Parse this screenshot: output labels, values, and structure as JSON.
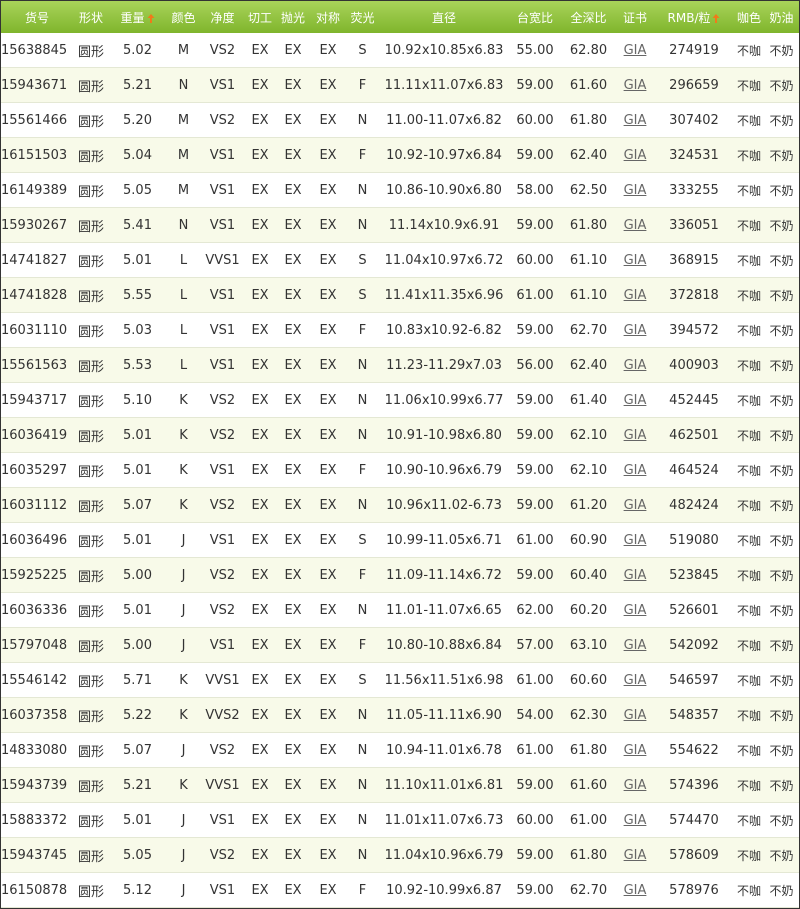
{
  "table": {
    "header": [
      "货号",
      "形状",
      "重量",
      "颜色",
      "净度",
      "切工",
      "抛光",
      "对称",
      "荧光",
      "直径",
      "台宽比",
      "全深比",
      "证书",
      "RMB/粒",
      "咖色",
      "奶油"
    ],
    "rows": [
      [
        "15638845",
        "圆形",
        "5.02",
        "M",
        "VS2",
        "EX",
        "EX",
        "EX",
        "S",
        "10.92x10.85x6.83",
        "55.00",
        "62.80",
        "GIA",
        "274919",
        "不咖",
        "不奶"
      ],
      [
        "15943671",
        "圆形",
        "5.21",
        "N",
        "VS1",
        "EX",
        "EX",
        "EX",
        "F",
        "11.11x11.07x6.83",
        "59.00",
        "61.60",
        "GIA",
        "296659",
        "不咖",
        "不奶"
      ],
      [
        "15561466",
        "圆形",
        "5.20",
        "M",
        "VS2",
        "EX",
        "EX",
        "EX",
        "N",
        "11.00-11.07x6.82",
        "60.00",
        "61.80",
        "GIA",
        "307402",
        "不咖",
        "不奶"
      ],
      [
        "16151503",
        "圆形",
        "5.04",
        "M",
        "VS1",
        "EX",
        "EX",
        "EX",
        "F",
        "10.92-10.97x6.84",
        "59.00",
        "62.40",
        "GIA",
        "324531",
        "不咖",
        "不奶"
      ],
      [
        "16149389",
        "圆形",
        "5.05",
        "M",
        "VS1",
        "EX",
        "EX",
        "EX",
        "N",
        "10.86-10.90x6.80",
        "58.00",
        "62.50",
        "GIA",
        "333255",
        "不咖",
        "不奶"
      ],
      [
        "15930267",
        "圆形",
        "5.41",
        "N",
        "VS1",
        "EX",
        "EX",
        "EX",
        "N",
        "11.14x10.9x6.91",
        "59.00",
        "61.80",
        "GIA",
        "336051",
        "不咖",
        "不奶"
      ],
      [
        "14741827",
        "圆形",
        "5.01",
        "L",
        "VVS1",
        "EX",
        "EX",
        "EX",
        "S",
        "11.04x10.97x6.72",
        "60.00",
        "61.10",
        "GIA",
        "368915",
        "不咖",
        "不奶"
      ],
      [
        "14741828",
        "圆形",
        "5.55",
        "L",
        "VS1",
        "EX",
        "EX",
        "EX",
        "S",
        "11.41x11.35x6.96",
        "61.00",
        "61.10",
        "GIA",
        "372818",
        "不咖",
        "不奶"
      ],
      [
        "16031110",
        "圆形",
        "5.03",
        "L",
        "VS1",
        "EX",
        "EX",
        "EX",
        "F",
        "10.83x10.92-6.82",
        "59.00",
        "62.70",
        "GIA",
        "394572",
        "不咖",
        "不奶"
      ],
      [
        "15561563",
        "圆形",
        "5.53",
        "L",
        "VS1",
        "EX",
        "EX",
        "EX",
        "N",
        "11.23-11.29x7.03",
        "56.00",
        "62.40",
        "GIA",
        "400903",
        "不咖",
        "不奶"
      ],
      [
        "15943717",
        "圆形",
        "5.10",
        "K",
        "VS2",
        "EX",
        "EX",
        "EX",
        "N",
        "11.06x10.99x6.77",
        "59.00",
        "61.40",
        "GIA",
        "452445",
        "不咖",
        "不奶"
      ],
      [
        "16036419",
        "圆形",
        "5.01",
        "K",
        "VS2",
        "EX",
        "EX",
        "EX",
        "N",
        "10.91-10.98x6.80",
        "59.00",
        "62.10",
        "GIA",
        "462501",
        "不咖",
        "不奶"
      ],
      [
        "16035297",
        "圆形",
        "5.01",
        "K",
        "VS1",
        "EX",
        "EX",
        "EX",
        "F",
        "10.90-10.96x6.79",
        "59.00",
        "62.10",
        "GIA",
        "464524",
        "不咖",
        "不奶"
      ],
      [
        "16031112",
        "圆形",
        "5.07",
        "K",
        "VS2",
        "EX",
        "EX",
        "EX",
        "N",
        "10.96x11.02-6.73",
        "59.00",
        "61.20",
        "GIA",
        "482424",
        "不咖",
        "不奶"
      ],
      [
        "16036496",
        "圆形",
        "5.01",
        "J",
        "VS1",
        "EX",
        "EX",
        "EX",
        "S",
        "10.99-11.05x6.71",
        "61.00",
        "60.90",
        "GIA",
        "519080",
        "不咖",
        "不奶"
      ],
      [
        "15925225",
        "圆形",
        "5.00",
        "J",
        "VS2",
        "EX",
        "EX",
        "EX",
        "F",
        "11.09-11.14x6.72",
        "59.00",
        "60.40",
        "GIA",
        "523845",
        "不咖",
        "不奶"
      ],
      [
        "16036336",
        "圆形",
        "5.01",
        "J",
        "VS2",
        "EX",
        "EX",
        "EX",
        "N",
        "11.01-11.07x6.65",
        "62.00",
        "60.20",
        "GIA",
        "526601",
        "不咖",
        "不奶"
      ],
      [
        "15797048",
        "圆形",
        "5.00",
        "J",
        "VS1",
        "EX",
        "EX",
        "EX",
        "F",
        "10.80-10.88x6.84",
        "57.00",
        "63.10",
        "GIA",
        "542092",
        "不咖",
        "不奶"
      ],
      [
        "15546142",
        "圆形",
        "5.71",
        "K",
        "VVS1",
        "EX",
        "EX",
        "EX",
        "S",
        "11.56x11.51x6.98",
        "61.00",
        "60.60",
        "GIA",
        "546597",
        "不咖",
        "不奶"
      ],
      [
        "16037358",
        "圆形",
        "5.22",
        "K",
        "VVS2",
        "EX",
        "EX",
        "EX",
        "N",
        "11.05-11.11x6.90",
        "54.00",
        "62.30",
        "GIA",
        "548357",
        "不咖",
        "不奶"
      ],
      [
        "14833080",
        "圆形",
        "5.07",
        "J",
        "VS2",
        "EX",
        "EX",
        "EX",
        "N",
        "10.94-11.01x6.78",
        "61.00",
        "61.80",
        "GIA",
        "554622",
        "不咖",
        "不奶"
      ],
      [
        "15943739",
        "圆形",
        "5.21",
        "K",
        "VVS1",
        "EX",
        "EX",
        "EX",
        "N",
        "11.10x11.01x6.81",
        "59.00",
        "61.60",
        "GIA",
        "574396",
        "不咖",
        "不奶"
      ],
      [
        "15883372",
        "圆形",
        "5.01",
        "J",
        "VS1",
        "EX",
        "EX",
        "EX",
        "N",
        "11.01x11.07x6.73",
        "60.00",
        "61.00",
        "GIA",
        "574470",
        "不咖",
        "不奶"
      ],
      [
        "15943745",
        "圆形",
        "5.05",
        "J",
        "VS2",
        "EX",
        "EX",
        "EX",
        "N",
        "11.04x10.96x6.79",
        "59.00",
        "61.80",
        "GIA",
        "578609",
        "不咖",
        "不奶"
      ],
      [
        "16150878",
        "圆形",
        "5.12",
        "J",
        "VS1",
        "EX",
        "EX",
        "EX",
        "F",
        "10.92-10.99x6.87",
        "59.00",
        "62.70",
        "GIA",
        "578976",
        "不咖",
        "不奶"
      ]
    ]
  }
}
